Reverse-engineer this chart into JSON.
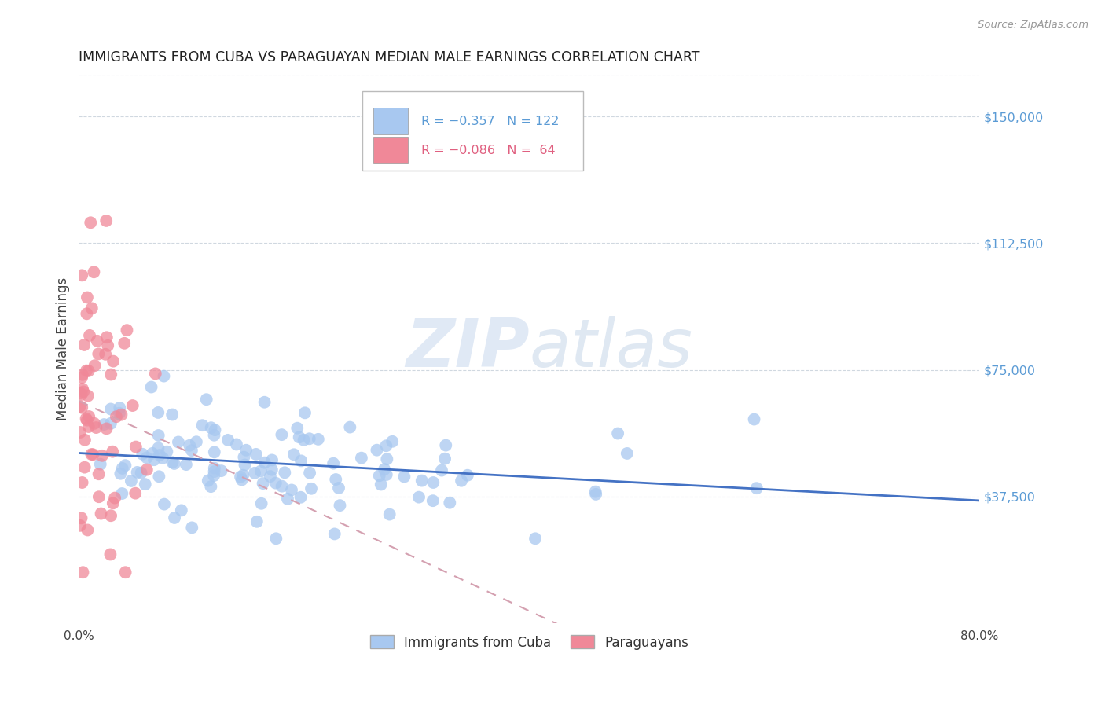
{
  "title": "IMMIGRANTS FROM CUBA VS PARAGUAYAN MEDIAN MALE EARNINGS CORRELATION CHART",
  "source": "Source: ZipAtlas.com",
  "ylabel": "Median Male Earnings",
  "y_min": 0,
  "y_max": 162500,
  "x_min": 0.0,
  "x_max": 0.8,
  "legend_blue_r": "-0.357",
  "legend_blue_n": "122",
  "legend_pink_r": "-0.086",
  "legend_pink_n": "64",
  "blue_color": "#a8c8f0",
  "pink_color": "#f08898",
  "line_blue_color": "#4472c4",
  "line_pink_color": "#d4a0b0",
  "grid_color": "#d0d8e0",
  "watermark_color": "#ccd8ee",
  "background_color": "#ffffff",
  "title_color": "#222222",
  "right_tick_color": "#5b9bd5",
  "y_tick_vals": [
    37500,
    75000,
    112500,
    150000
  ],
  "y_tick_labels": [
    "$37,500",
    "$75,000",
    "$112,500",
    "$150,000"
  ]
}
